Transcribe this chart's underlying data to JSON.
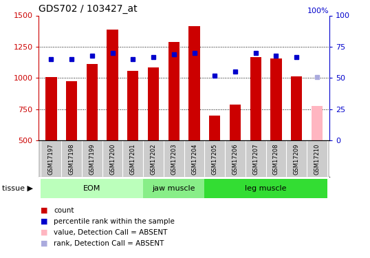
{
  "title": "GDS702 / 103427_at",
  "samples": [
    "GSM17197",
    "GSM17198",
    "GSM17199",
    "GSM17200",
    "GSM17201",
    "GSM17202",
    "GSM17203",
    "GSM17204",
    "GSM17205",
    "GSM17206",
    "GSM17207",
    "GSM17208",
    "GSM17209",
    "GSM17210"
  ],
  "bar_values": [
    1007,
    975,
    1110,
    1385,
    1055,
    1085,
    1290,
    1415,
    700,
    790,
    1165,
    1155,
    1015,
    775
  ],
  "bar_colors": [
    "#cc0000",
    "#cc0000",
    "#cc0000",
    "#cc0000",
    "#cc0000",
    "#cc0000",
    "#cc0000",
    "#cc0000",
    "#cc0000",
    "#cc0000",
    "#cc0000",
    "#cc0000",
    "#cc0000",
    "#ffb6c1"
  ],
  "rank_values": [
    65,
    65,
    68,
    70,
    65,
    67,
    69,
    70,
    52,
    55,
    70,
    68,
    67,
    51
  ],
  "rank_colors": [
    "#0000cc",
    "#0000cc",
    "#0000cc",
    "#0000cc",
    "#0000cc",
    "#0000cc",
    "#0000cc",
    "#0000cc",
    "#0000cc",
    "#0000cc",
    "#0000cc",
    "#0000cc",
    "#0000cc",
    "#aaaadd"
  ],
  "ylim_left": [
    500,
    1500
  ],
  "ylim_right": [
    0,
    100
  ],
  "yticks_left": [
    500,
    750,
    1000,
    1250,
    1500
  ],
  "yticks_right": [
    0,
    25,
    50,
    75,
    100
  ],
  "groups": [
    {
      "label": "EOM",
      "start": 0,
      "end": 5
    },
    {
      "label": "jaw muscle",
      "start": 5,
      "end": 8
    },
    {
      "label": "leg muscle",
      "start": 8,
      "end": 14
    }
  ],
  "group_colors": [
    "#bbffbb",
    "#88ee88",
    "#33dd33"
  ],
  "bar_width": 0.55,
  "bg_color": "#ffffff",
  "plot_bg": "#ffffff",
  "left_axis_color": "#cc0000",
  "right_axis_color": "#0000cc",
  "legend_colors": [
    "#cc0000",
    "#0000cc",
    "#ffb6c1",
    "#aaaadd"
  ],
  "legend_labels": [
    "count",
    "percentile rank within the sample",
    "value, Detection Call = ABSENT",
    "rank, Detection Call = ABSENT"
  ],
  "xticklabel_bg": "#cccccc",
  "dotted_lines": [
    750,
    1000,
    1250
  ]
}
